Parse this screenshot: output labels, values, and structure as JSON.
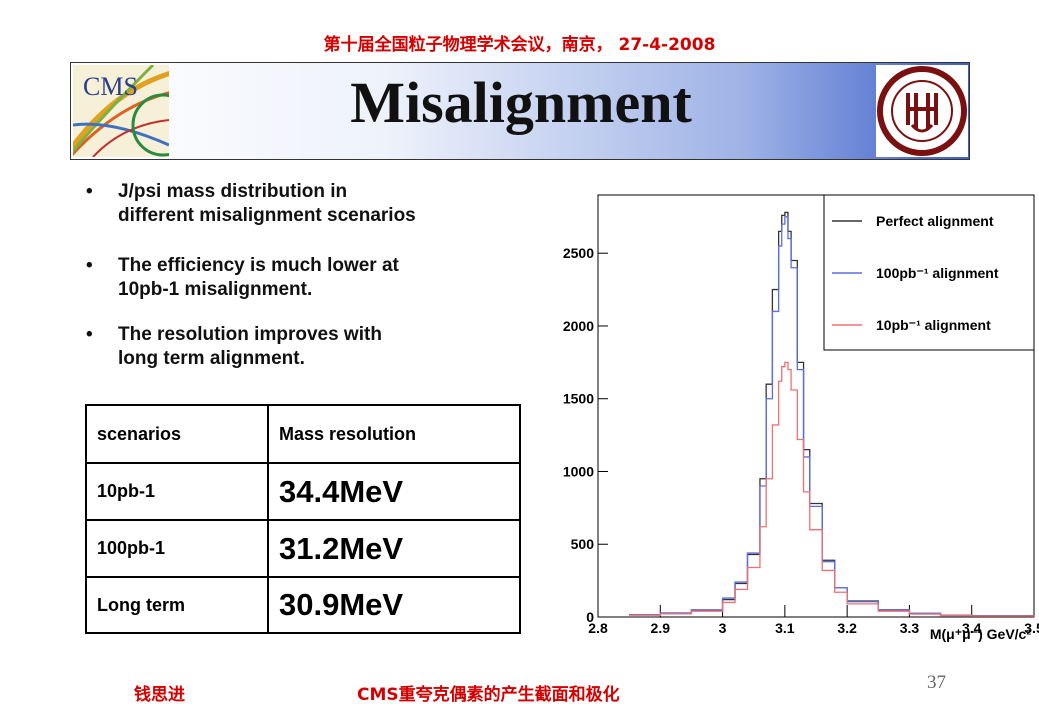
{
  "header": {
    "text": "第十届全国粒子物理学术会议，南京， 27-4-2008"
  },
  "banner": {
    "title": "Misalignment",
    "cms_logo_text": "CMS"
  },
  "bullets": [
    {
      "line1": "J/psi mass distribution in",
      "line2": "different misalignment scenarios"
    },
    {
      "line1": "The efficiency is much lower at",
      "line2": "10pb-1 misalignment."
    },
    {
      "line1": "The resolution improves with",
      "line2": "long term alignment."
    }
  ],
  "table": {
    "headers": [
      "scenarios",
      "Mass resolution"
    ],
    "rows": [
      {
        "scenario": "10pb-1",
        "resolution": "34.4MeV"
      },
      {
        "scenario": "100pb-1",
        "resolution": "31.2MeV"
      },
      {
        "scenario": "Long term",
        "resolution": "30.9MeV"
      }
    ]
  },
  "chart_data": {
    "type": "line",
    "title": "",
    "xlabel": "M(μ⁺μ⁻) GeV/c²",
    "ylabel": "",
    "xlim": [
      2.8,
      3.5
    ],
    "ylim": [
      0,
      2900
    ],
    "xticks": [
      "2.8",
      "2.9",
      "3",
      "3.1",
      "3.2",
      "3.3",
      "3.4",
      "3.5"
    ],
    "yticks": [
      "0",
      "500",
      "1000",
      "1500",
      "2000",
      "2500"
    ],
    "x": [
      2.85,
      2.9,
      2.95,
      3.0,
      3.02,
      3.04,
      3.06,
      3.07,
      3.08,
      3.09,
      3.095,
      3.1,
      3.105,
      3.11,
      3.12,
      3.13,
      3.14,
      3.16,
      3.18,
      3.2,
      3.25,
      3.3,
      3.35,
      3.4,
      3.5
    ],
    "legend_position": "top-right",
    "series": [
      {
        "name": "Perfect alignment",
        "color": "#333333",
        "values": [
          15,
          25,
          45,
          120,
          230,
          430,
          950,
          1600,
          2250,
          2650,
          2760,
          2780,
          2650,
          2450,
          1750,
          1150,
          780,
          390,
          200,
          110,
          50,
          25,
          12,
          8,
          4
        ]
      },
      {
        "name": "100pb⁻¹ alignment",
        "color": "#5a6fe0",
        "values": [
          15,
          28,
          50,
          130,
          240,
          440,
          900,
          1500,
          2100,
          2550,
          2700,
          2750,
          2600,
          2400,
          1700,
          1100,
          760,
          380,
          200,
          105,
          50,
          25,
          12,
          8,
          4
        ]
      },
      {
        "name": "10pb⁻¹ alignment",
        "color": "#f07070",
        "values": [
          12,
          22,
          40,
          100,
          190,
          340,
          620,
          950,
          1320,
          1620,
          1720,
          1750,
          1700,
          1560,
          1220,
          860,
          600,
          320,
          170,
          90,
          40,
          20,
          10,
          6,
          3
        ]
      }
    ]
  },
  "footer": {
    "name": "钱思进",
    "talk": "CMS重夸克偶素的产生截面和极化",
    "page": "37"
  }
}
